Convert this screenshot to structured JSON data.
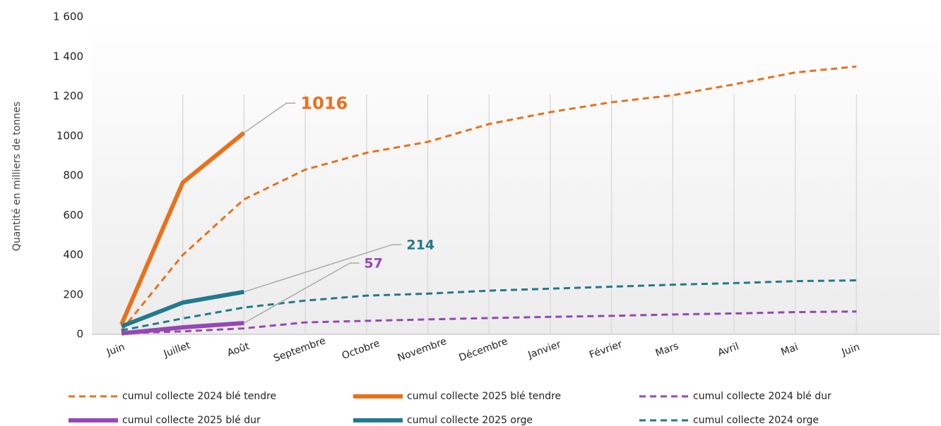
{
  "chart_data": {
    "type": "line",
    "y_label": "Quantité en milliers de tonnes",
    "categories": [
      "Juin",
      "Juillet",
      "Août",
      "Septembre",
      "Octobre",
      "Novembre",
      "Décembre",
      "Janvier",
      "Février",
      "Mars",
      "Avril",
      "Mai",
      "Juin"
    ],
    "ylim": [
      0,
      1600
    ],
    "yticks": [
      0,
      200,
      400,
      600,
      800,
      1000,
      {
        "value": 1200,
        "label": "1 200"
      },
      {
        "value": 1400,
        "label": "1 400"
      },
      {
        "value": 1600,
        "label": "1 600"
      }
    ],
    "grid": "vertical",
    "legend": "bottom",
    "series": [
      {
        "name": "cumul collecte 2024 blé tendre",
        "color": "#e8711c",
        "style": "dashed",
        "values": [
          20,
          400,
          680,
          830,
          915,
          970,
          1060,
          1120,
          1170,
          1205,
          1260,
          1320,
          1350
        ]
      },
      {
        "name": "cumul collecte 2025 blé tendre",
        "color": "#e8711c",
        "style": "solid",
        "values": [
          50,
          765,
          1016,
          null,
          null,
          null,
          null,
          null,
          null,
          null,
          null,
          null,
          null
        ],
        "label_last": true
      },
      {
        "name": "cumul collecte 2024 blé dur",
        "color": "#9548b3",
        "style": "dashed",
        "values": [
          5,
          15,
          30,
          60,
          68,
          75,
          82,
          88,
          93,
          100,
          105,
          112,
          115
        ]
      },
      {
        "name": "cumul collecte 2025 blé dur",
        "color": "#9548b3",
        "style": "solid",
        "values": [
          5,
          35,
          57,
          null,
          null,
          null,
          null,
          null,
          null,
          null,
          null,
          null,
          null
        ],
        "label_last": true
      },
      {
        "name": "cumul collecte 2025 orge",
        "color": "#217a8e",
        "style": "solid",
        "values": [
          40,
          160,
          214,
          null,
          null,
          null,
          null,
          null,
          null,
          null,
          null,
          null,
          null
        ],
        "label_last": true
      },
      {
        "name": "cumul collecte 2024 orge",
        "color": "#217a8e",
        "style": "dashed",
        "values": [
          20,
          80,
          135,
          170,
          195,
          205,
          220,
          230,
          240,
          250,
          258,
          268,
          272
        ]
      }
    ]
  }
}
